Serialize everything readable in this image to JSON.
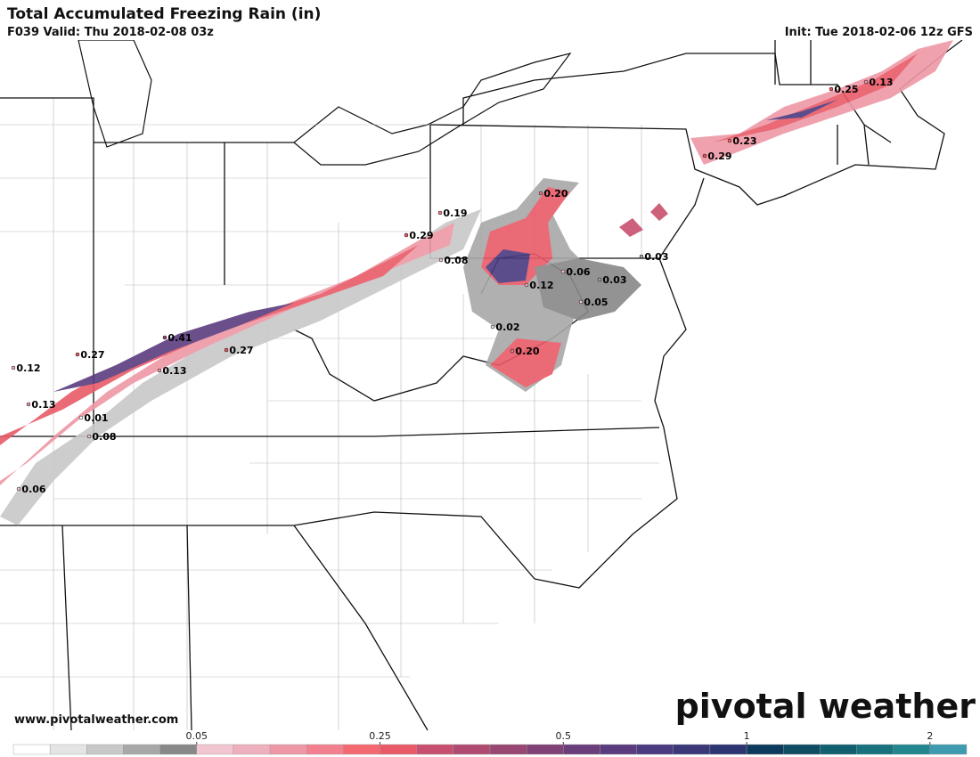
{
  "header": {
    "title": "Total Accumulated Freezing Rain (in)",
    "subtitle": "F039 Valid: Thu 2018-02-08 03z",
    "init": "Init: Tue 2018-02-06 12z GFS"
  },
  "map": {
    "values": [
      0.29,
      0.19,
      0.2,
      0.08,
      0.03,
      0.06,
      0.03,
      0.12,
      0.05,
      0.02,
      0.2,
      0.41,
      0.27,
      0.27,
      0.13,
      0.12,
      0.13,
      0.01,
      0.08,
      0.06,
      0.23,
      0.29,
      0.25,
      0.13
    ],
    "value_labels": [
      "0.29",
      "0.19",
      "0.20",
      "0.08",
      "0.03",
      "0.06",
      "0.03",
      "0.12",
      "0.05",
      "0.02",
      "0.20",
      "0.41",
      "0.27",
      "0.27",
      "0.13",
      "0.12",
      "0.13",
      "0.01",
      "0.08",
      "0.06",
      "0.23",
      "0.29",
      "0.25",
      "0.13"
    ]
  },
  "footer": {
    "website": "www.pivotalweather.com",
    "logo": "pivotal weather"
  },
  "colorbar": {
    "ticks": [
      0.05,
      0.25,
      0.5,
      1,
      2
    ],
    "colors": [
      "#ffffff",
      "#e4e4e4",
      "#c8c8c8",
      "#a8a8a8",
      "#888888",
      "#f2c6d0",
      "#eeb0bc",
      "#ee98a6",
      "#f2808e",
      "#f46870",
      "#e85a68",
      "#c8506e",
      "#b04a70",
      "#984672",
      "#804276",
      "#6a3e7a",
      "#5a3c7e",
      "#4a3a80",
      "#3a3878",
      "#2c3472",
      "#0c3a5c",
      "#0e4c64",
      "#106070",
      "#17727e",
      "#23868e",
      "#3e9aae"
    ]
  }
}
